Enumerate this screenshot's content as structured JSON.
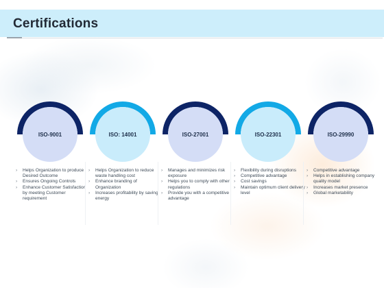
{
  "title": "Certifications",
  "colors": {
    "header_band": "#cdeefb",
    "navy": "#0d2466",
    "cyan": "#12a9e6",
    "disc_blue": "#d4ddf6",
    "disc_cyan": "#c9ecfb"
  },
  "certifications": [
    {
      "label": "ISO-9001",
      "style": "navy",
      "points": [
        "Helps Organization to produce Desired Outcome",
        "Ensures Ongoing Controls",
        "Enhance Customer Satisfaction by meeting Customer requirement"
      ]
    },
    {
      "label": "ISO: 14001",
      "style": "cyan",
      "points": [
        "Helps Organization to reduce waste handling cost",
        "Enhance branding of Organization",
        "Increases profitability by saving energy"
      ]
    },
    {
      "label": "ISO-27001",
      "style": "navy",
      "points": [
        "Manages and minimizes risk exposure",
        "Helps you to comply with other regulations",
        "Provide you with a competitive advantage"
      ]
    },
    {
      "label": "ISO-22301",
      "style": "cyan",
      "points": [
        "Flexibility during disruptions",
        "Competitive advantage",
        "Cost savings",
        "Maintain optimum client delivery level"
      ]
    },
    {
      "label": "ISO-29990",
      "style": "navy",
      "points": [
        "Competitive advantage",
        "Helps in establishing company quality model",
        "Increases market presence",
        "Global marketability"
      ]
    }
  ]
}
